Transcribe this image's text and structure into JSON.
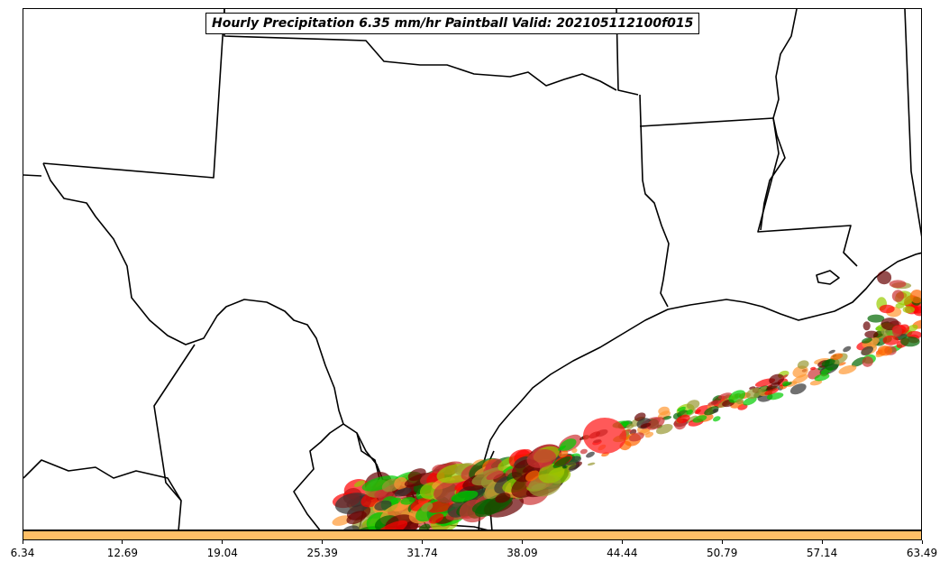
{
  "title": "Hourly Precipitation 6.35 mm/hr Paintball Valid: 202105112100f015",
  "colorbar": {
    "color": "#ffbf66",
    "ticks": [
      "6.34",
      "12.69",
      "19.04",
      "25.39",
      "31.74",
      "38.09",
      "44.44",
      "50.79",
      "57.14",
      "63.49"
    ]
  },
  "member_colors": [
    "#ff0000",
    "#ff6600",
    "#ff9933",
    "#00cc00",
    "#006600",
    "#999933",
    "#660000",
    "#333333",
    "#cc3333",
    "#99cc00"
  ]
}
